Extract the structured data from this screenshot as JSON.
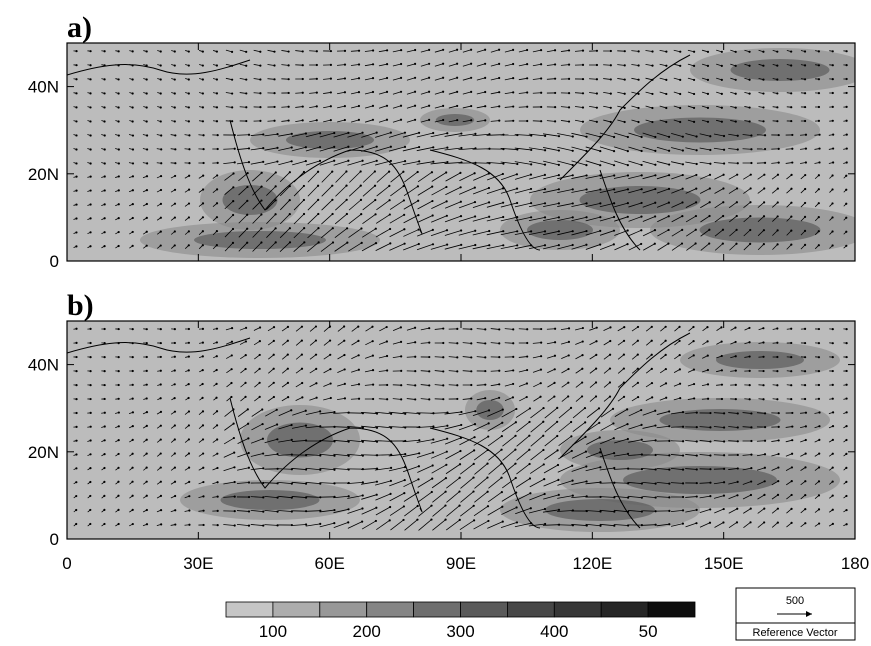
{
  "panels": [
    {
      "label": "a)"
    },
    {
      "label": "b)"
    }
  ],
  "x_axis": {
    "ticks": [
      "0",
      "30E",
      "60E",
      "90E",
      "120E",
      "150E",
      "180"
    ]
  },
  "y_axis": {
    "ticks": [
      "0",
      "20N",
      "40N"
    ]
  },
  "colorbar": {
    "labels": [
      "100",
      "200",
      "300",
      "400",
      "50"
    ],
    "colors": [
      "#c6c6c6",
      "#adadad",
      "#989898",
      "#858585",
      "#6e6e6e",
      "#5a5a5a",
      "#474747",
      "#373737",
      "#262626",
      "#0e0e0e"
    ]
  },
  "reference_vector": {
    "magnitude": "500",
    "label": "Reference Vector"
  }
}
